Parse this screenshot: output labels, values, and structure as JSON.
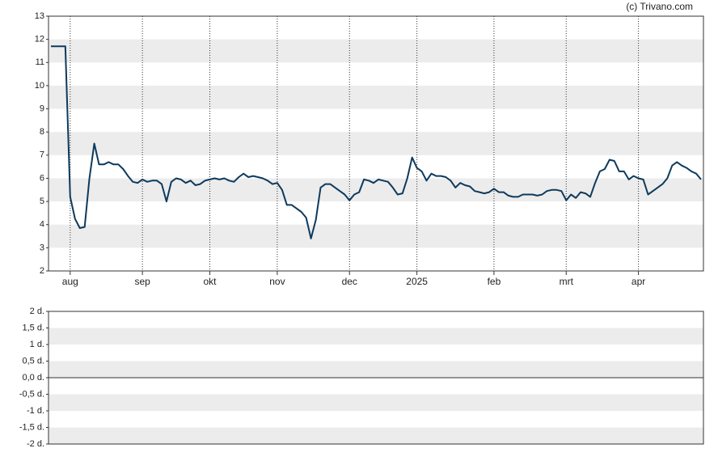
{
  "chart_data": [
    {
      "type": "line",
      "credit": "(c) Trivano.com",
      "categories": [
        null,
        null,
        null,
        null,
        "aug",
        null,
        null,
        null,
        null,
        null,
        null,
        null,
        null,
        null,
        null,
        null,
        null,
        null,
        null,
        "sep",
        null,
        null,
        null,
        null,
        null,
        null,
        null,
        null,
        null,
        null,
        null,
        null,
        null,
        "okt",
        null,
        null,
        null,
        null,
        null,
        null,
        null,
        null,
        null,
        null,
        null,
        null,
        null,
        "nov",
        null,
        null,
        null,
        null,
        null,
        null,
        null,
        null,
        null,
        null,
        null,
        null,
        null,
        null,
        "dec",
        null,
        null,
        null,
        null,
        null,
        null,
        null,
        null,
        null,
        null,
        null,
        null,
        null,
        "2025",
        null,
        null,
        null,
        null,
        null,
        null,
        null,
        null,
        null,
        null,
        null,
        null,
        null,
        null,
        null,
        "feb",
        null,
        null,
        null,
        null,
        null,
        null,
        null,
        null,
        null,
        null,
        null,
        null,
        null,
        null,
        "mrt",
        null,
        null,
        null,
        null,
        null,
        null,
        null,
        null,
        null,
        null,
        null,
        null,
        null,
        null,
        "apr",
        null,
        null,
        null,
        null,
        null,
        null,
        null,
        null,
        null,
        null,
        null,
        null,
        null
      ],
      "values": [
        11.7,
        11.7,
        11.7,
        11.7,
        5.2,
        4.25,
        3.85,
        3.9,
        6.0,
        7.5,
        6.6,
        6.6,
        6.7,
        6.6,
        6.6,
        6.4,
        6.1,
        5.85,
        5.8,
        5.95,
        5.85,
        5.9,
        5.9,
        5.75,
        5.0,
        5.85,
        6.0,
        5.95,
        5.8,
        5.9,
        5.7,
        5.75,
        5.9,
        5.95,
        6.0,
        5.95,
        6.0,
        5.9,
        5.85,
        6.05,
        6.2,
        6.05,
        6.1,
        6.05,
        6.0,
        5.9,
        5.75,
        5.8,
        5.5,
        4.85,
        4.85,
        4.7,
        4.55,
        4.3,
        3.4,
        4.2,
        5.6,
        5.75,
        5.75,
        5.6,
        5.45,
        5.3,
        5.05,
        5.3,
        5.4,
        5.95,
        5.9,
        5.8,
        5.95,
        5.9,
        5.85,
        5.6,
        5.3,
        5.35,
        6.0,
        6.9,
        6.45,
        6.3,
        5.9,
        6.2,
        6.1,
        6.1,
        6.05,
        5.9,
        5.6,
        5.8,
        5.7,
        5.65,
        5.45,
        5.4,
        5.35,
        5.4,
        5.55,
        5.4,
        5.4,
        5.25,
        5.2,
        5.2,
        5.3,
        5.3,
        5.3,
        5.25,
        5.3,
        5.45,
        5.5,
        5.5,
        5.45,
        5.05,
        5.3,
        5.15,
        5.4,
        5.35,
        5.2,
        5.8,
        6.3,
        6.4,
        6.8,
        6.75,
        6.3,
        6.3,
        5.95,
        6.1,
        6.0,
        5.95,
        5.3,
        5.45,
        5.6,
        5.75,
        6.0,
        6.55,
        6.7,
        6.55,
        6.45,
        6.3,
        6.2,
        5.95
      ],
      "color": "#0d3a5c",
      "ylim": [
        2,
        13
      ],
      "yticks": [
        2,
        3,
        4,
        5,
        6,
        7,
        8,
        9,
        10,
        11,
        12,
        13
      ],
      "grid": true
    },
    {
      "type": "line",
      "ylim": [
        -2,
        2
      ],
      "yticks": [
        {
          "value": -2,
          "label": "-2 d."
        },
        {
          "value": -1.5,
          "label": "-1,5 d."
        },
        {
          "value": -1,
          "label": "-1 d."
        },
        {
          "value": -0.5,
          "label": "-0,5 d."
        },
        {
          "value": 0,
          "label": "0,0 d."
        },
        {
          "value": 0.5,
          "label": "0,5 d."
        },
        {
          "value": 1,
          "label": "1 d."
        },
        {
          "value": 1.5,
          "label": "1,5 d."
        },
        {
          "value": 2,
          "label": "2 d."
        }
      ],
      "grid": true
    }
  ]
}
